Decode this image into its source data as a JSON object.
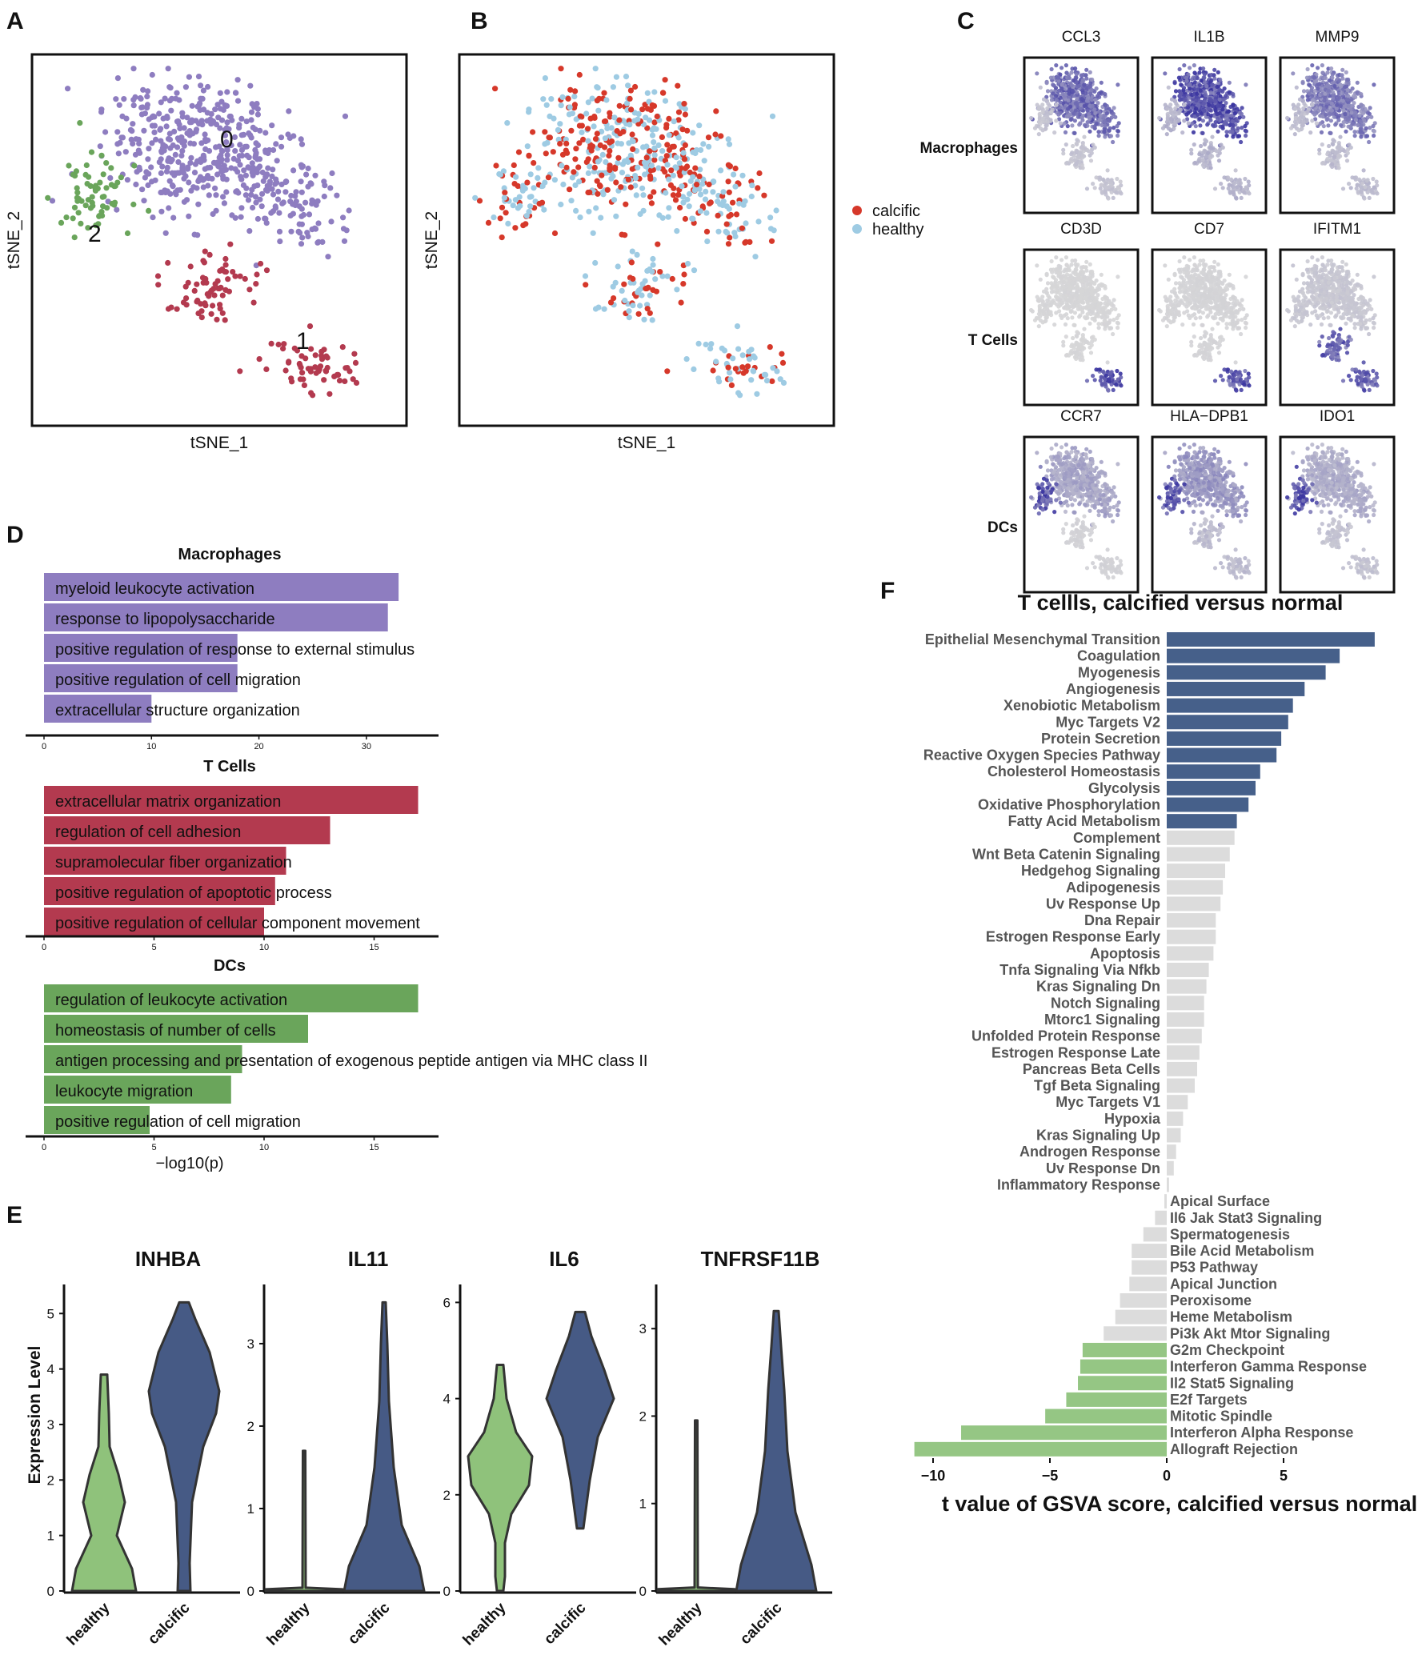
{
  "panel_letters": {
    "A": "A",
    "B": "B",
    "C": "C",
    "D": "D",
    "E": "E",
    "F": "F"
  },
  "colors": {
    "purple": "#8e7dc0",
    "red": "#b33a4f",
    "green": "#6aa55b",
    "calcific": "#d6382a",
    "healthy": "#9ecbe3",
    "navy": "#465a85",
    "lightgreen": "#8fc27b",
    "gray": "#dcdcdc",
    "gsva_pos": "#46608a",
    "gsva_neg": "#95c684"
  },
  "tsne": {
    "xlabel": "tSNE_1",
    "ylabel": "tSNE_2",
    "clusters": [
      {
        "id": "0",
        "label": "0"
      },
      {
        "id": "1",
        "label": "1"
      },
      {
        "id": "2",
        "label": "2"
      }
    ],
    "legend": [
      {
        "name": "calcific"
      },
      {
        "name": "healthy"
      }
    ]
  },
  "featureplots": {
    "rows": [
      {
        "label": "Macrophages",
        "genes": [
          "CCL3",
          "IL1B",
          "MMP9"
        ]
      },
      {
        "label": "T Cells",
        "genes": [
          "CD3D",
          "CD7",
          "IFITM1"
        ]
      },
      {
        "label": "DCs",
        "genes": [
          "CCR7",
          "HLA−DPB1",
          "IDO1"
        ]
      }
    ]
  },
  "chart_data": [
    {
      "type": "bar",
      "panel": "D",
      "title": "Macrophages",
      "xlabel": "",
      "categories": [
        "myeloid leukocyte activation",
        "response to lipopolysaccharide",
        "positive regulation of response to external stimulus",
        "positive regulation of cell migration",
        "extracellular structure organization"
      ],
      "values": [
        33,
        32,
        18,
        18,
        10
      ],
      "xlim": [
        0,
        35
      ],
      "xticks": [
        "0",
        "10",
        "20",
        "30"
      ]
    },
    {
      "type": "bar",
      "panel": "D",
      "title": "T Cells",
      "xlabel": "",
      "categories": [
        "extracellular matrix organization",
        "regulation of cell adhesion",
        "supramolecular fiber organization",
        "positive regulation of apoptotic process",
        "positive regulation of cellular component movement"
      ],
      "values": [
        17,
        13,
        11,
        10.5,
        10
      ],
      "xlim": [
        0,
        18
      ],
      "xticks": [
        "0",
        "5",
        "10",
        "15"
      ]
    },
    {
      "type": "bar",
      "panel": "D",
      "title": "DCs",
      "xlabel": "−log10(p)",
      "categories": [
        "regulation of leukocyte activation",
        "homeostasis of number of cells",
        "antigen processing and presentation of exogenous peptide antigen via MHC class II",
        "leukocyte migration",
        "positive regulation of cell migration"
      ],
      "values": [
        17,
        12,
        9,
        8.5,
        4.8
      ],
      "xlim": [
        0,
        18
      ],
      "xticks": [
        "0",
        "5",
        "10",
        "15"
      ]
    },
    {
      "type": "violin",
      "panel": "E",
      "ylabel": "Expression Level",
      "categories": [
        "healthy",
        "calcific"
      ],
      "genes": [
        {
          "name": "INHBA",
          "ylim": [
            0,
            5.2
          ],
          "yticks": [
            "0",
            "1",
            "2",
            "3",
            "4",
            "5"
          ]
        },
        {
          "name": "IL11",
          "ylim": [
            0,
            3.5
          ],
          "yticks": [
            "0",
            "1",
            "2",
            "3"
          ]
        },
        {
          "name": "IL6",
          "ylim": [
            0,
            6.0
          ],
          "yticks": [
            "0",
            "2",
            "4",
            "6"
          ]
        },
        {
          "name": "TNFRSF11B",
          "ylim": [
            0,
            3.3
          ],
          "yticks": [
            "0",
            "1",
            "2",
            "3"
          ]
        }
      ]
    },
    {
      "type": "bar",
      "panel": "F",
      "title": "T cellls, calcified versus normal",
      "xlabel": "t value of GSVA score, calcified versus normal",
      "xlim": [
        -11,
        9
      ],
      "xticks": [
        "−10",
        "−5",
        "0",
        "5"
      ],
      "categories": [
        "Epithelial Mesenchymal Transition",
        "Coagulation",
        "Myogenesis",
        "Angiogenesis",
        "Xenobiotic Metabolism",
        "Myc Targets V2",
        "Protein Secretion",
        "Reactive Oxygen Species Pathway",
        "Cholesterol Homeostasis",
        "Glycolysis",
        "Oxidative Phosphorylation",
        "Fatty Acid Metabolism",
        "Complement",
        "Wnt Beta Catenin Signaling",
        "Hedgehog Signaling",
        "Adipogenesis",
        "Uv Response Up",
        "Dna Repair",
        "Estrogen Response Early",
        "Apoptosis",
        "Tnfa Signaling Via Nfkb",
        "Kras Signaling Dn",
        "Notch Signaling",
        "Mtorc1 Signaling",
        "Unfolded Protein Response",
        "Estrogen Response Late",
        "Pancreas Beta Cells",
        "Tgf Beta Signaling",
        "Myc Targets V1",
        "Hypoxia",
        "Kras Signaling Up",
        "Androgen Response",
        "Uv Response Dn",
        "Inflammatory Response",
        "Apical Surface",
        "Il6 Jak Stat3 Signaling",
        "Spermatogenesis",
        "Bile Acid Metabolism",
        "P53 Pathway",
        "Apical Junction",
        "Peroxisome",
        "Heme Metabolism",
        "Pi3k Akt Mtor Signaling",
        "G2m Checkpoint",
        "Interferon Gamma Response",
        "Il2 Stat5 Signaling",
        "E2f Targets",
        "Mitotic Spindle",
        "Interferon Alpha Response",
        "Allograft Rejection"
      ],
      "values": [
        8.9,
        7.4,
        6.8,
        5.9,
        5.4,
        5.2,
        4.9,
        4.7,
        4.0,
        3.8,
        3.5,
        3.0,
        2.9,
        2.7,
        2.5,
        2.4,
        2.3,
        2.1,
        2.1,
        2.0,
        1.8,
        1.7,
        1.6,
        1.6,
        1.5,
        1.4,
        1.3,
        1.2,
        0.9,
        0.7,
        0.6,
        0.4,
        0.3,
        0.1,
        -0.1,
        -0.5,
        -1.0,
        -1.5,
        -1.5,
        -1.6,
        -2.0,
        -2.2,
        -2.7,
        -3.6,
        -3.7,
        -3.8,
        -4.3,
        -5.2,
        -8.8,
        -10.8
      ]
    }
  ]
}
